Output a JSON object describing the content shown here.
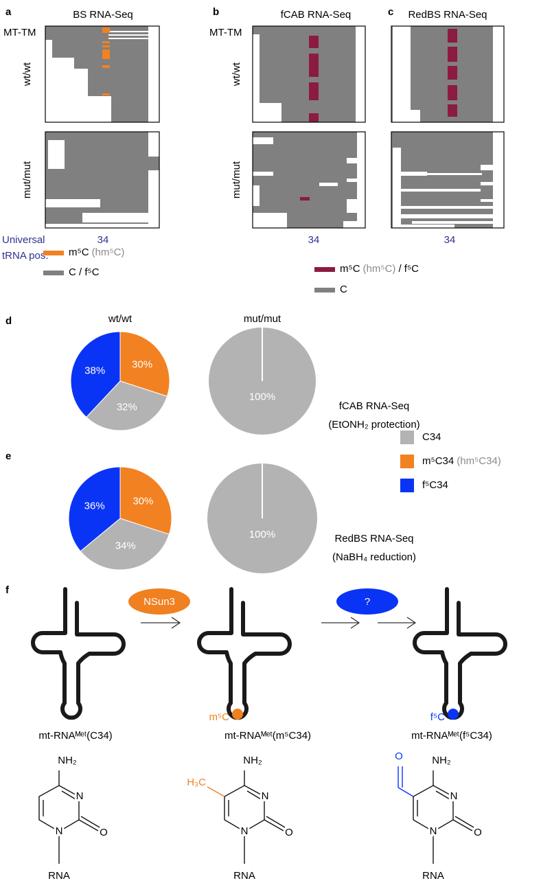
{
  "panels": [
    {
      "label": "a",
      "title": "BS RNA-Seq",
      "row_labels": [
        "MT-TM",
        "wt/wt",
        "mut/mut"
      ],
      "x_label": "34",
      "axis_title": [
        "Universal",
        "tRNA pos."
      ],
      "legend": [
        {
          "name": "m⁵C",
          "note": "(hm⁵C)",
          "color": "#f28121"
        },
        {
          "name": "C / f⁵C",
          "color": "#808080"
        }
      ]
    },
    {
      "label": "b",
      "title": "fCAB RNA-Seq",
      "row_labels": [
        "MT-TM",
        "wt/wt",
        "mut/mut"
      ],
      "x_label": "34",
      "legend": [
        {
          "name": "m⁵C",
          "note": "(hm⁵C)",
          "rest": "/ f⁵C",
          "color": "#8b1b41"
        },
        {
          "name": "C",
          "color": "#808080"
        }
      ]
    },
    {
      "label": "c",
      "title": "RedBS RNA-Seq",
      "x_label": "34"
    }
  ],
  "chart_data": [
    {
      "type": "pie",
      "panel_label": "d",
      "title": "wt/wt",
      "values": [
        30,
        32,
        38
      ],
      "value_labels": [
        "30%",
        "32%",
        "38%"
      ],
      "colors": [
        "#f28121",
        "#b3b3b3",
        "#0a34f5"
      ]
    },
    {
      "type": "pie",
      "title": "mut/mut",
      "values": [
        100
      ],
      "value_labels": [
        "100%"
      ],
      "colors": [
        "#b3b3b3"
      ],
      "annotations": [
        "fCAB RNA-Seq",
        "(EtONH₂ protection)"
      ]
    },
    {
      "type": "pie",
      "panel_label": "e",
      "values": [
        30,
        34,
        36
      ],
      "value_labels": [
        "30%",
        "34%",
        "36%"
      ],
      "colors": [
        "#f28121",
        "#b3b3b3",
        "#0a34f5"
      ]
    },
    {
      "type": "pie",
      "values": [
        100
      ],
      "value_labels": [
        "100%"
      ],
      "colors": [
        "#b3b3b3"
      ],
      "annotations": [
        "RedBS RNA-Seq",
        "(NaBH₄ reduction)"
      ]
    }
  ],
  "pie_legend": [
    {
      "name": "C34",
      "color": "#b3b3b3"
    },
    {
      "name": "m⁵C34",
      "note": "(hm⁵C34)",
      "color": "#f28121"
    },
    {
      "name": "f⁵C34",
      "color": "#0a34f5"
    }
  ],
  "pathway": {
    "label": "f",
    "enzymes": [
      {
        "name": "NSun3",
        "color": "#f08020"
      },
      {
        "name": "?",
        "color": "#0a34f5"
      }
    ],
    "molecules": [
      {
        "name": "mt-RNAᴹᵉᵗ(C34)",
        "atoms": [
          "NH₂",
          "N",
          "O",
          "N",
          "RNA"
        ]
      },
      {
        "name": "mt-RNAᴹᵉᵗ(m⁵C34)",
        "site": "m⁵C",
        "color": "#f08020",
        "substituent": "H₃C",
        "atoms": [
          "NH₂",
          "N",
          "O",
          "N",
          "RNA"
        ]
      },
      {
        "name": "mt-RNAᴹᵉᵗ(f⁵C34)",
        "site": "f⁵C",
        "color": "#0a34f5",
        "substituent": "O",
        "atoms": [
          "NH₂",
          "N",
          "O",
          "N",
          "RNA"
        ]
      }
    ]
  }
}
